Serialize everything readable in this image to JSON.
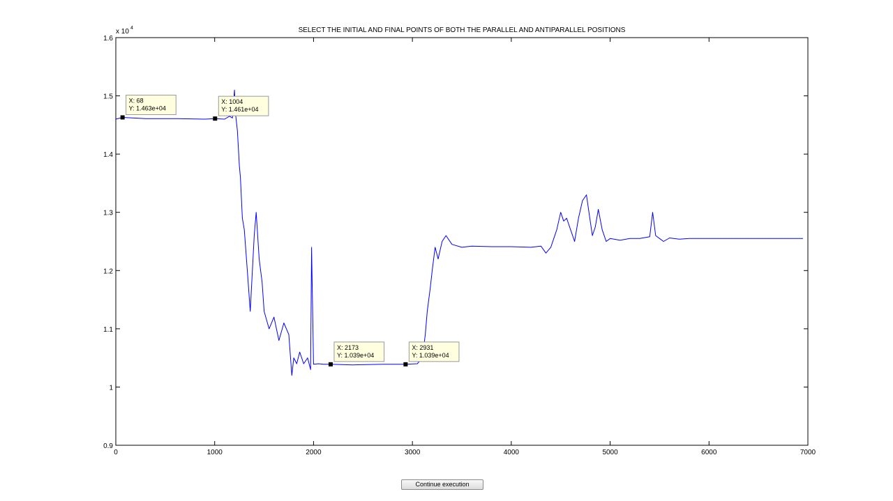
{
  "chart_data": {
    "type": "line",
    "title": "SELECT THE INITIAL AND FINAL POINTS OF BOTH THE PARALLEL AND ANTIPARALLEL POSITIONS",
    "xlabel": "",
    "ylabel": "",
    "xlim": [
      0,
      7000
    ],
    "ylim": [
      9000,
      16000
    ],
    "y_exponent_label": "x 10",
    "y_exponent_power": "4",
    "x_ticks": [
      0,
      1000,
      2000,
      3000,
      4000,
      5000,
      6000,
      7000
    ],
    "x_tick_labels": [
      "0",
      "1000",
      "2000",
      "3000",
      "4000",
      "5000",
      "6000",
      "7000"
    ],
    "y_ticks": [
      9000,
      10000,
      11000,
      12000,
      13000,
      14000,
      15000,
      16000
    ],
    "y_tick_labels": [
      "0.9",
      "1",
      "1.1",
      "1.2",
      "1.3",
      "1.4",
      "1.5",
      "1.6"
    ],
    "grid": false,
    "line_color": "#0000ff",
    "series": [
      {
        "x": [
          0,
          68,
          300,
          600,
          900,
          1004,
          1100,
          1150,
          1180,
          1200,
          1210,
          1230,
          1250,
          1260,
          1280,
          1300,
          1330,
          1360,
          1400,
          1420,
          1450,
          1480,
          1500,
          1550,
          1600,
          1650,
          1700,
          1750,
          1780,
          1800,
          1830,
          1860,
          1900,
          1940,
          1970,
          1980,
          2000,
          2050,
          2100,
          2173,
          2400,
          2700,
          2931,
          3050,
          3100,
          3130,
          3150,
          3180,
          3200,
          3230,
          3260,
          3300,
          3340,
          3400,
          3500,
          3600,
          3800,
          4000,
          4200,
          4300,
          4350,
          4400,
          4430,
          4460,
          4500,
          4530,
          4560,
          4600,
          4640,
          4680,
          4720,
          4760,
          4790,
          4820,
          4850,
          4880,
          4920,
          4960,
          5000,
          5100,
          5200,
          5300,
          5400,
          5430,
          5460,
          5500,
          5540,
          5600,
          5700,
          5800,
          6000,
          6200,
          6500,
          6800,
          6950
        ],
        "y": [
          14600,
          14630,
          14610,
          14610,
          14600,
          14610,
          14600,
          14650,
          14620,
          15100,
          14700,
          14400,
          13800,
          13600,
          12900,
          12700,
          12000,
          11300,
          12600,
          13000,
          12200,
          11800,
          11300,
          11000,
          11200,
          10800,
          11100,
          10900,
          10200,
          10500,
          10400,
          10600,
          10400,
          10500,
          10300,
          12400,
          10390,
          10400,
          10390,
          10390,
          10380,
          10390,
          10390,
          10400,
          10500,
          10900,
          11300,
          11700,
          12000,
          12400,
          12200,
          12500,
          12600,
          12450,
          12400,
          12420,
          12410,
          12410,
          12400,
          12420,
          12300,
          12400,
          12550,
          12700,
          13000,
          12850,
          12900,
          12700,
          12500,
          12900,
          13200,
          13300,
          12950,
          12600,
          12750,
          13050,
          12700,
          12500,
          12550,
          12520,
          12550,
          12550,
          12580,
          13000,
          12600,
          12550,
          12500,
          12560,
          12540,
          12550,
          12550,
          12550,
          12550,
          12550,
          12550
        ]
      }
    ],
    "datatips": [
      {
        "x": 68,
        "y": 14630,
        "line1": "X: 68",
        "line2": "Y: 1.463e+04"
      },
      {
        "x": 1004,
        "y": 14610,
        "line1": "X: 1004",
        "line2": "Y: 1.461e+04"
      },
      {
        "x": 2173,
        "y": 10390,
        "line1": "X: 2173",
        "line2": "Y: 1.039e+04"
      },
      {
        "x": 2931,
        "y": 10390,
        "line1": "X: 2931",
        "line2": "Y: 1.039e+04"
      }
    ]
  },
  "ui": {
    "continue_label": "Continue execution"
  }
}
